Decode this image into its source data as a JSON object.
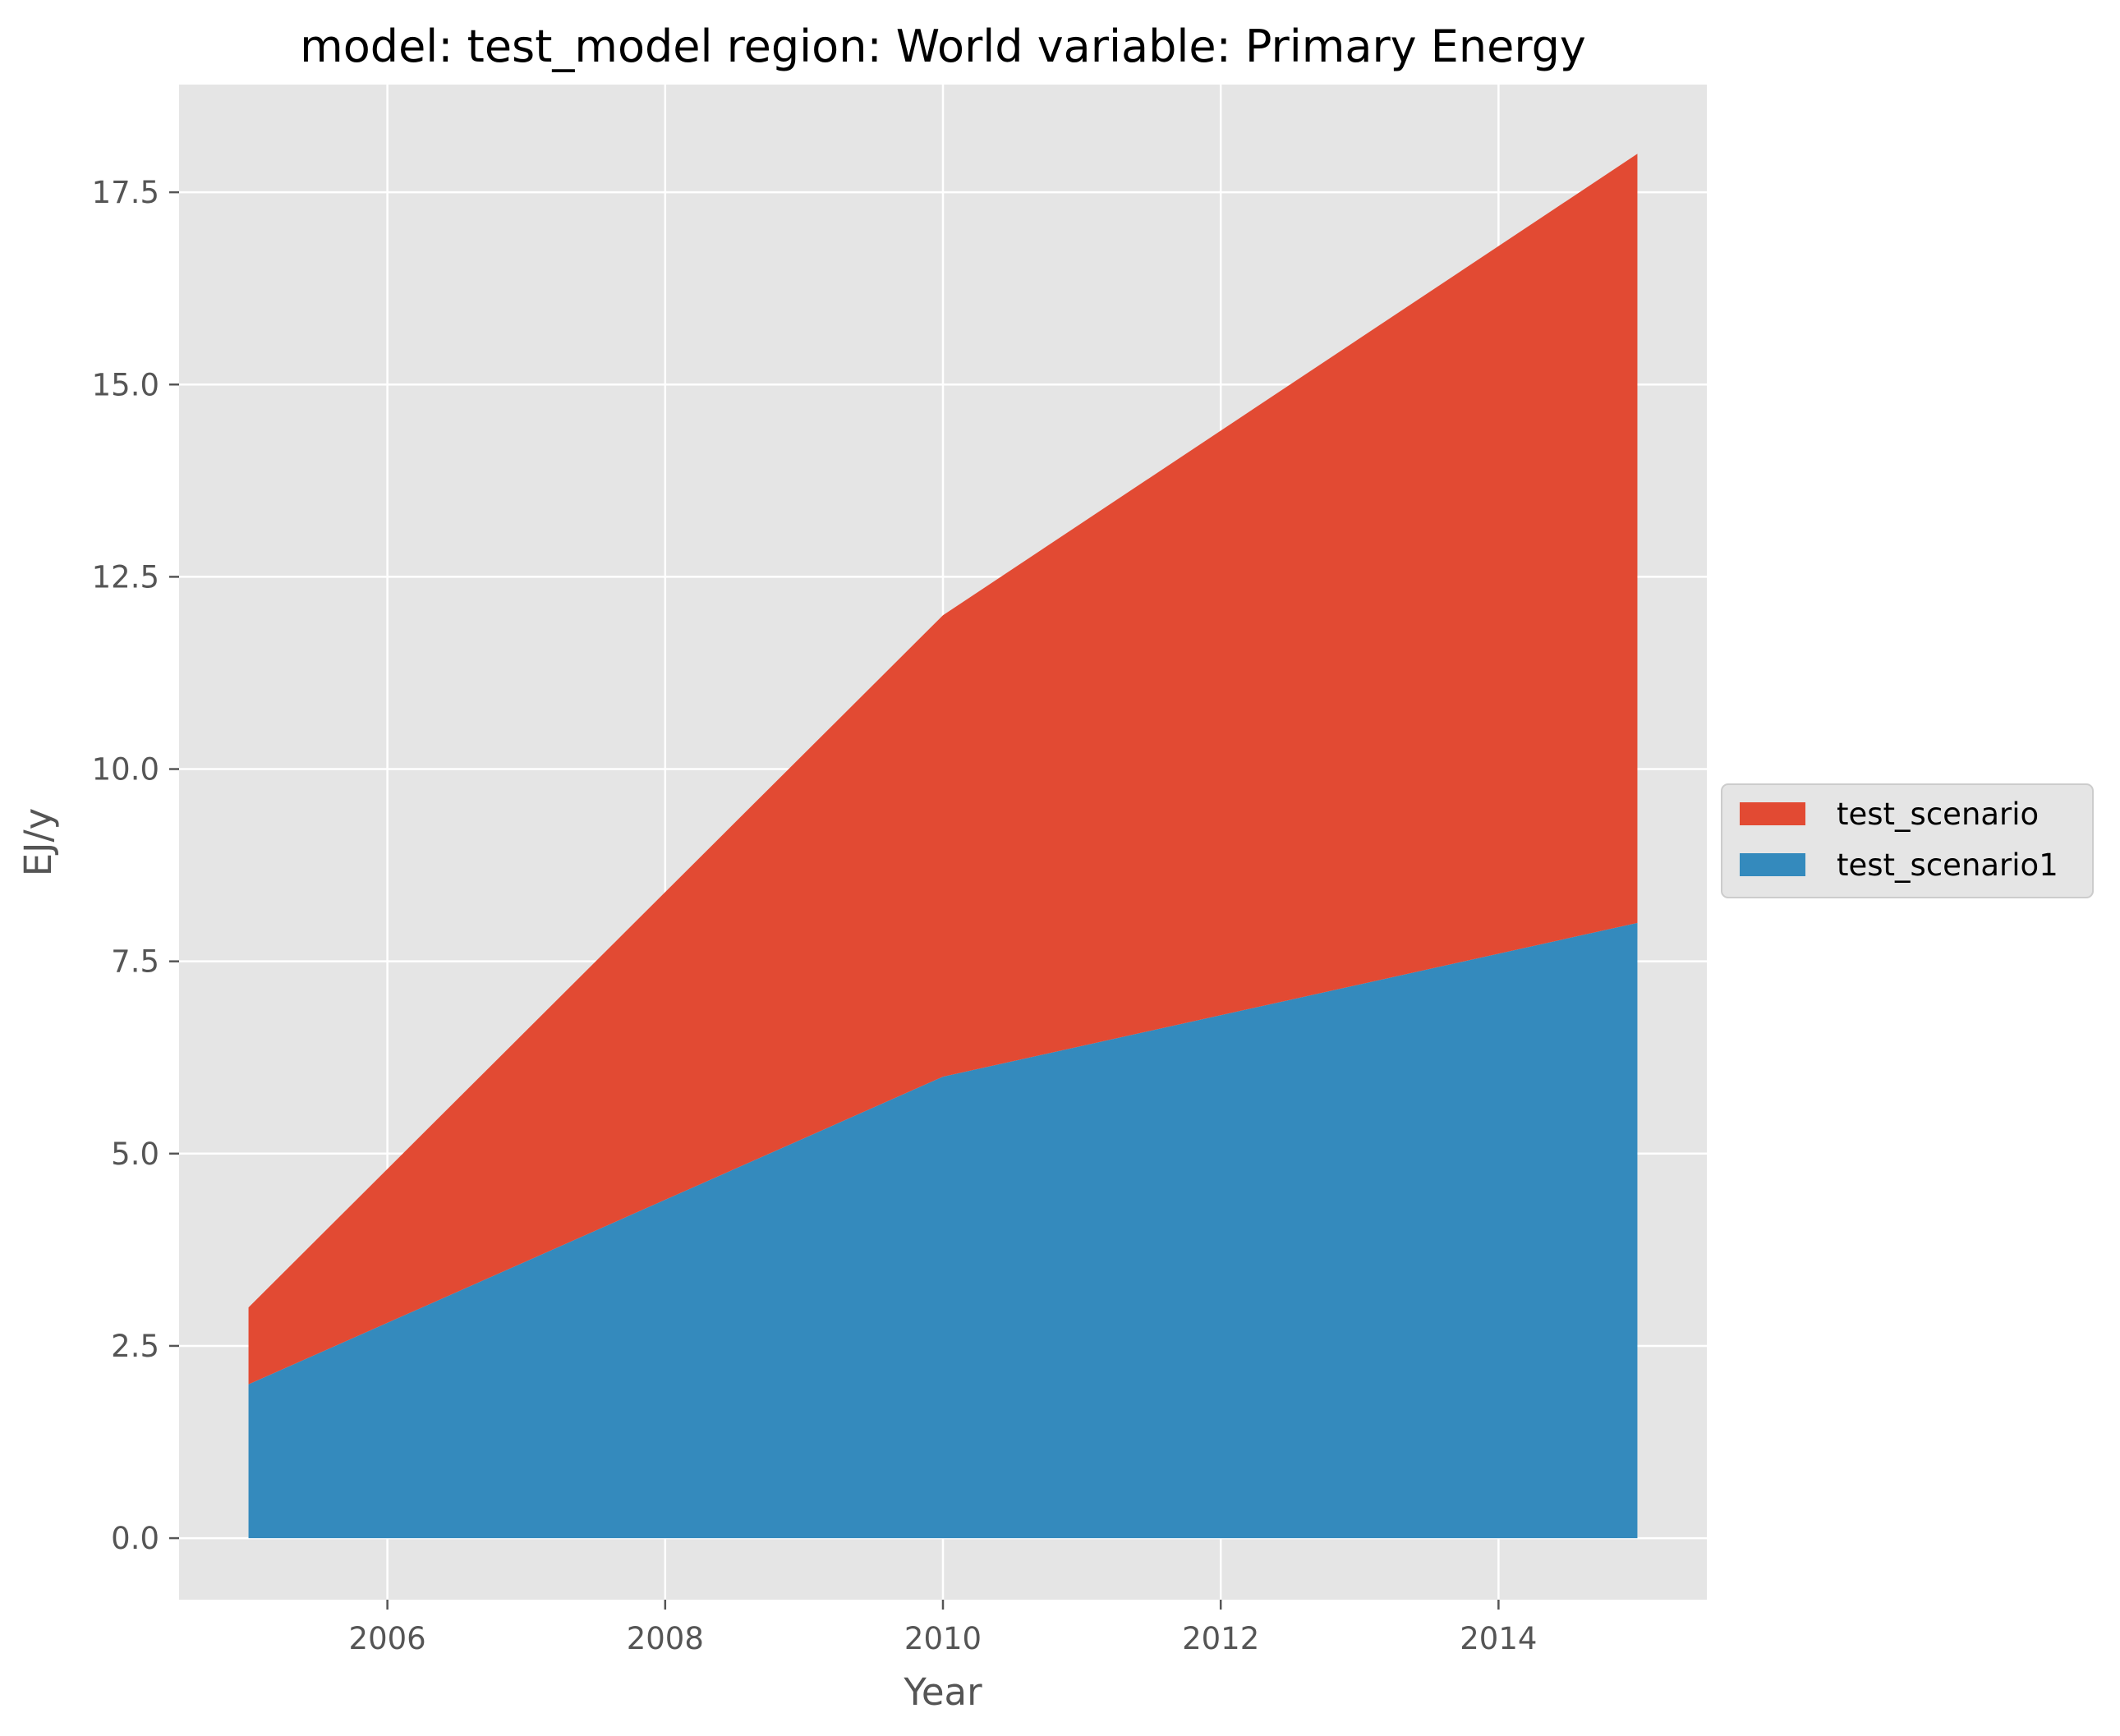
{
  "chart_data": {
    "type": "area",
    "stacked": true,
    "title": "model: test_model region: World variable: Primary Energy",
    "xlabel": "Year",
    "ylabel": "EJ/y",
    "x": [
      2005,
      2010,
      2015
    ],
    "series": [
      {
        "name": "test_scenario1",
        "values": [
          2,
          6,
          8
        ],
        "color": "#348abd"
      },
      {
        "name": "test_scenario",
        "values": [
          1,
          6,
          10
        ],
        "color": "#e24a33"
      }
    ],
    "xlim": [
      2004.5,
      2015.5
    ],
    "ylim": [
      -0.8,
      18.9
    ],
    "xticks": [
      2006,
      2008,
      2010,
      2012,
      2014
    ],
    "yticks": [
      "0.0",
      "2.5",
      "5.0",
      "7.5",
      "10.0",
      "12.5",
      "15.0",
      "17.5"
    ],
    "legend": {
      "placement": "right",
      "order": [
        "test_scenario",
        "test_scenario1"
      ]
    },
    "grid": true,
    "plot_background": "#e5e5e5",
    "grid_color": "#ffffff"
  }
}
